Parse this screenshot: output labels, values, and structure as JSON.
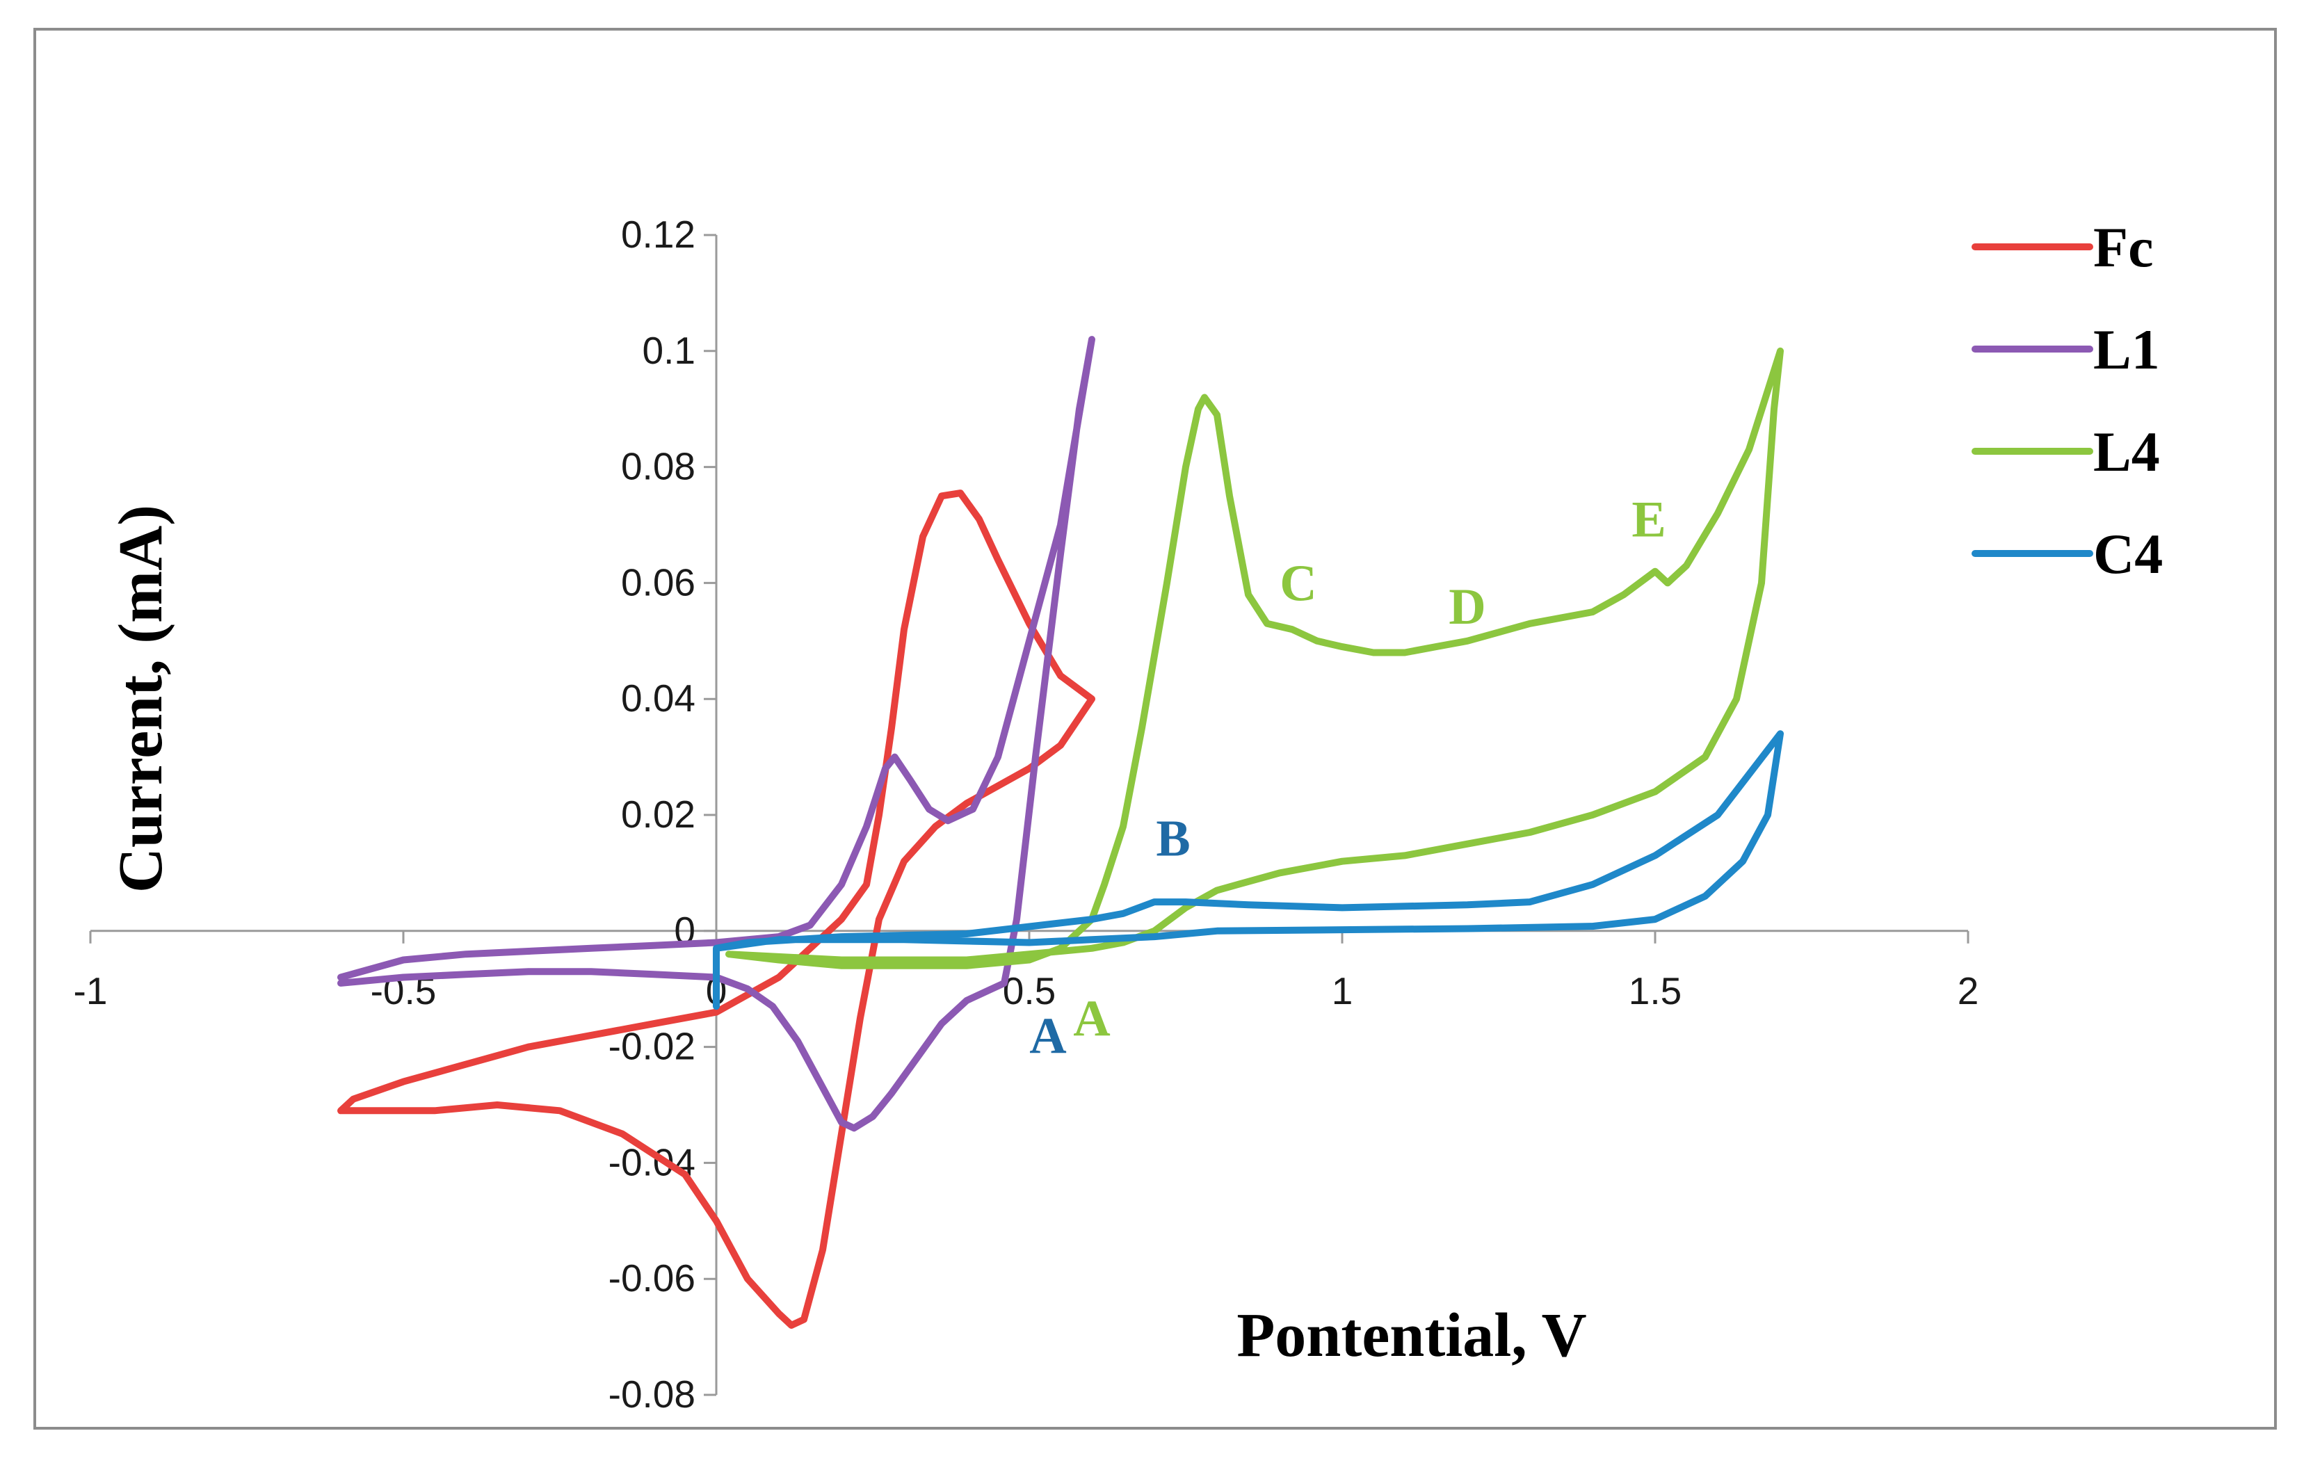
{
  "chart_data": {
    "type": "line",
    "title": "",
    "xlabel": "Pontential, V",
    "ylabel": "Current, (mA)",
    "xlim": [
      -1,
      2
    ],
    "ylim": [
      -0.08,
      0.12
    ],
    "x_ticks": [
      "-1",
      "-0.5",
      "0",
      "0.5",
      "1",
      "1.5",
      "2"
    ],
    "y_ticks": [
      "0.12",
      "0.1",
      "0.08",
      "0.06",
      "0.04",
      "0.02",
      "0",
      "-0.02",
      "-0.04",
      "-0.06",
      "-0.08"
    ],
    "grid": false,
    "legend_position": "top-right",
    "series": [
      {
        "name": "Fc",
        "color": "#e8403c",
        "points": [
          [
            0.6,
            0.04
          ],
          [
            0.55,
            0.044
          ],
          [
            0.5,
            0.053
          ],
          [
            0.45,
            0.064
          ],
          [
            0.42,
            0.071
          ],
          [
            0.39,
            0.0755
          ],
          [
            0.36,
            0.075
          ],
          [
            0.33,
            0.068
          ],
          [
            0.3,
            0.052
          ],
          [
            0.28,
            0.035
          ],
          [
            0.26,
            0.02
          ],
          [
            0.24,
            0.008
          ],
          [
            0.2,
            0.002
          ],
          [
            0.15,
            -0.003
          ],
          [
            0.1,
            -0.008
          ],
          [
            0.05,
            -0.011
          ],
          [
            0,
            -0.014
          ],
          [
            -0.1,
            -0.016
          ],
          [
            -0.2,
            -0.018
          ],
          [
            -0.3,
            -0.02
          ],
          [
            -0.4,
            -0.023
          ],
          [
            -0.5,
            -0.026
          ],
          [
            -0.58,
            -0.029
          ],
          [
            -0.6,
            -0.031
          ],
          [
            -0.55,
            -0.031
          ],
          [
            -0.45,
            -0.031
          ],
          [
            -0.35,
            -0.03
          ],
          [
            -0.25,
            -0.031
          ],
          [
            -0.15,
            -0.035
          ],
          [
            -0.05,
            -0.042
          ],
          [
            0,
            -0.05
          ],
          [
            0.05,
            -0.06
          ],
          [
            0.1,
            -0.066
          ],
          [
            0.12,
            -0.068
          ],
          [
            0.14,
            -0.067
          ],
          [
            0.17,
            -0.055
          ],
          [
            0.2,
            -0.035
          ],
          [
            0.23,
            -0.015
          ],
          [
            0.26,
            0.002
          ],
          [
            0.3,
            0.012
          ],
          [
            0.35,
            0.018
          ],
          [
            0.4,
            0.022
          ],
          [
            0.5,
            0.028
          ],
          [
            0.55,
            0.032
          ],
          [
            0.6,
            0.04
          ]
        ]
      },
      {
        "name": "L1",
        "color": "#8c59b3",
        "points": [
          [
            -0.6,
            -0.008
          ],
          [
            -0.5,
            -0.005
          ],
          [
            -0.4,
            -0.004
          ],
          [
            -0.3,
            -0.0035
          ],
          [
            -0.2,
            -0.003
          ],
          [
            -0.1,
            -0.0025
          ],
          [
            0,
            -0.002
          ],
          [
            0.1,
            -0.001
          ],
          [
            0.15,
            0.001
          ],
          [
            0.2,
            0.008
          ],
          [
            0.24,
            0.018
          ],
          [
            0.27,
            0.028
          ],
          [
            0.285,
            0.03
          ],
          [
            0.31,
            0.026
          ],
          [
            0.34,
            0.021
          ],
          [
            0.37,
            0.019
          ],
          [
            0.41,
            0.021
          ],
          [
            0.45,
            0.03
          ],
          [
            0.5,
            0.05
          ],
          [
            0.55,
            0.07
          ],
          [
            0.6,
            0.102
          ],
          [
            0.58,
            0.09
          ],
          [
            0.55,
            0.065
          ],
          [
            0.51,
            0.03
          ],
          [
            0.48,
            0.002
          ],
          [
            0.46,
            -0.009
          ],
          [
            0.44,
            -0.01
          ],
          [
            0.4,
            -0.012
          ],
          [
            0.36,
            -0.016
          ],
          [
            0.32,
            -0.022
          ],
          [
            0.28,
            -0.028
          ],
          [
            0.25,
            -0.032
          ],
          [
            0.22,
            -0.034
          ],
          [
            0.2,
            -0.033
          ],
          [
            0.17,
            -0.027
          ],
          [
            0.13,
            -0.019
          ],
          [
            0.09,
            -0.013
          ],
          [
            0.05,
            -0.01
          ],
          [
            0,
            -0.008
          ],
          [
            -0.1,
            -0.0075
          ],
          [
            -0.2,
            -0.007
          ],
          [
            -0.3,
            -0.007
          ],
          [
            -0.4,
            -0.0075
          ],
          [
            -0.5,
            -0.008
          ],
          [
            -0.6,
            -0.009
          ]
        ]
      },
      {
        "name": "L4",
        "color": "#8cc63f",
        "points": [
          [
            0.02,
            -0.004
          ],
          [
            0.1,
            -0.005
          ],
          [
            0.2,
            -0.006
          ],
          [
            0.3,
            -0.006
          ],
          [
            0.4,
            -0.006
          ],
          [
            0.5,
            -0.005
          ],
          [
            0.55,
            -0.003
          ],
          [
            0.6,
            0.002
          ],
          [
            0.62,
            0.008
          ],
          [
            0.65,
            0.018
          ],
          [
            0.68,
            0.035
          ],
          [
            0.72,
            0.06
          ],
          [
            0.75,
            0.08
          ],
          [
            0.77,
            0.09
          ],
          [
            0.78,
            0.092
          ],
          [
            0.8,
            0.089
          ],
          [
            0.82,
            0.075
          ],
          [
            0.85,
            0.058
          ],
          [
            0.88,
            0.053
          ],
          [
            0.92,
            0.052
          ],
          [
            0.96,
            0.05
          ],
          [
            1.0,
            0.049
          ],
          [
            1.05,
            0.048
          ],
          [
            1.1,
            0.048
          ],
          [
            1.15,
            0.049
          ],
          [
            1.2,
            0.05
          ],
          [
            1.3,
            0.053
          ],
          [
            1.4,
            0.055
          ],
          [
            1.45,
            0.058
          ],
          [
            1.5,
            0.062
          ],
          [
            1.52,
            0.06
          ],
          [
            1.55,
            0.063
          ],
          [
            1.6,
            0.072
          ],
          [
            1.65,
            0.083
          ],
          [
            1.7,
            0.1
          ],
          [
            1.69,
            0.09
          ],
          [
            1.67,
            0.06
          ],
          [
            1.63,
            0.04
          ],
          [
            1.58,
            0.03
          ],
          [
            1.5,
            0.024
          ],
          [
            1.4,
            0.02
          ],
          [
            1.3,
            0.017
          ],
          [
            1.2,
            0.015
          ],
          [
            1.1,
            0.013
          ],
          [
            1.0,
            0.012
          ],
          [
            0.9,
            0.01
          ],
          [
            0.8,
            0.007
          ],
          [
            0.75,
            0.004
          ],
          [
            0.7,
            0.0
          ],
          [
            0.65,
            -0.002
          ],
          [
            0.6,
            -0.003
          ],
          [
            0.5,
            -0.004
          ],
          [
            0.4,
            -0.005
          ],
          [
            0.2,
            -0.005
          ],
          [
            0.02,
            -0.004
          ]
        ]
      },
      {
        "name": "C4",
        "color": "#1f88c9",
        "points": [
          [
            0,
            -0.013
          ],
          [
            0,
            -0.003
          ],
          [
            0.05,
            -0.002
          ],
          [
            0.2,
            -0.001
          ],
          [
            0.4,
            -0.0005
          ],
          [
            0.6,
            0.002
          ],
          [
            0.65,
            0.003
          ],
          [
            0.7,
            0.005
          ],
          [
            0.75,
            0.005
          ],
          [
            0.85,
            0.0045
          ],
          [
            1.0,
            0.004
          ],
          [
            1.2,
            0.0045
          ],
          [
            1.3,
            0.005
          ],
          [
            1.4,
            0.008
          ],
          [
            1.5,
            0.013
          ],
          [
            1.6,
            0.02
          ],
          [
            1.7,
            0.034
          ],
          [
            1.68,
            0.02
          ],
          [
            1.64,
            0.012
          ],
          [
            1.58,
            0.006
          ],
          [
            1.5,
            0.002
          ],
          [
            1.4,
            0.0008
          ],
          [
            1.2,
            0.0004
          ],
          [
            1.0,
            0.0002
          ],
          [
            0.8,
            0.0
          ],
          [
            0.7,
            -0.001
          ],
          [
            0.6,
            -0.0015
          ],
          [
            0.5,
            -0.002
          ],
          [
            0.3,
            -0.0015
          ],
          [
            0.1,
            -0.0015
          ],
          [
            0,
            -0.003
          ]
        ]
      }
    ],
    "annotations": [
      {
        "text": "A",
        "x": 0.53,
        "y": -0.021,
        "color": "#1f6aa5"
      },
      {
        "text": "A",
        "x": 0.6,
        "y": -0.018,
        "color": "#8cc63f"
      },
      {
        "text": "B",
        "x": 0.73,
        "y": 0.013,
        "color": "#1f6aa5"
      },
      {
        "text": "C",
        "x": 0.93,
        "y": 0.057,
        "color": "#8cc63f"
      },
      {
        "text": "D",
        "x": 1.2,
        "y": 0.053,
        "color": "#8cc63f"
      },
      {
        "text": "E",
        "x": 1.49,
        "y": 0.068,
        "color": "#8cc63f"
      }
    ]
  }
}
